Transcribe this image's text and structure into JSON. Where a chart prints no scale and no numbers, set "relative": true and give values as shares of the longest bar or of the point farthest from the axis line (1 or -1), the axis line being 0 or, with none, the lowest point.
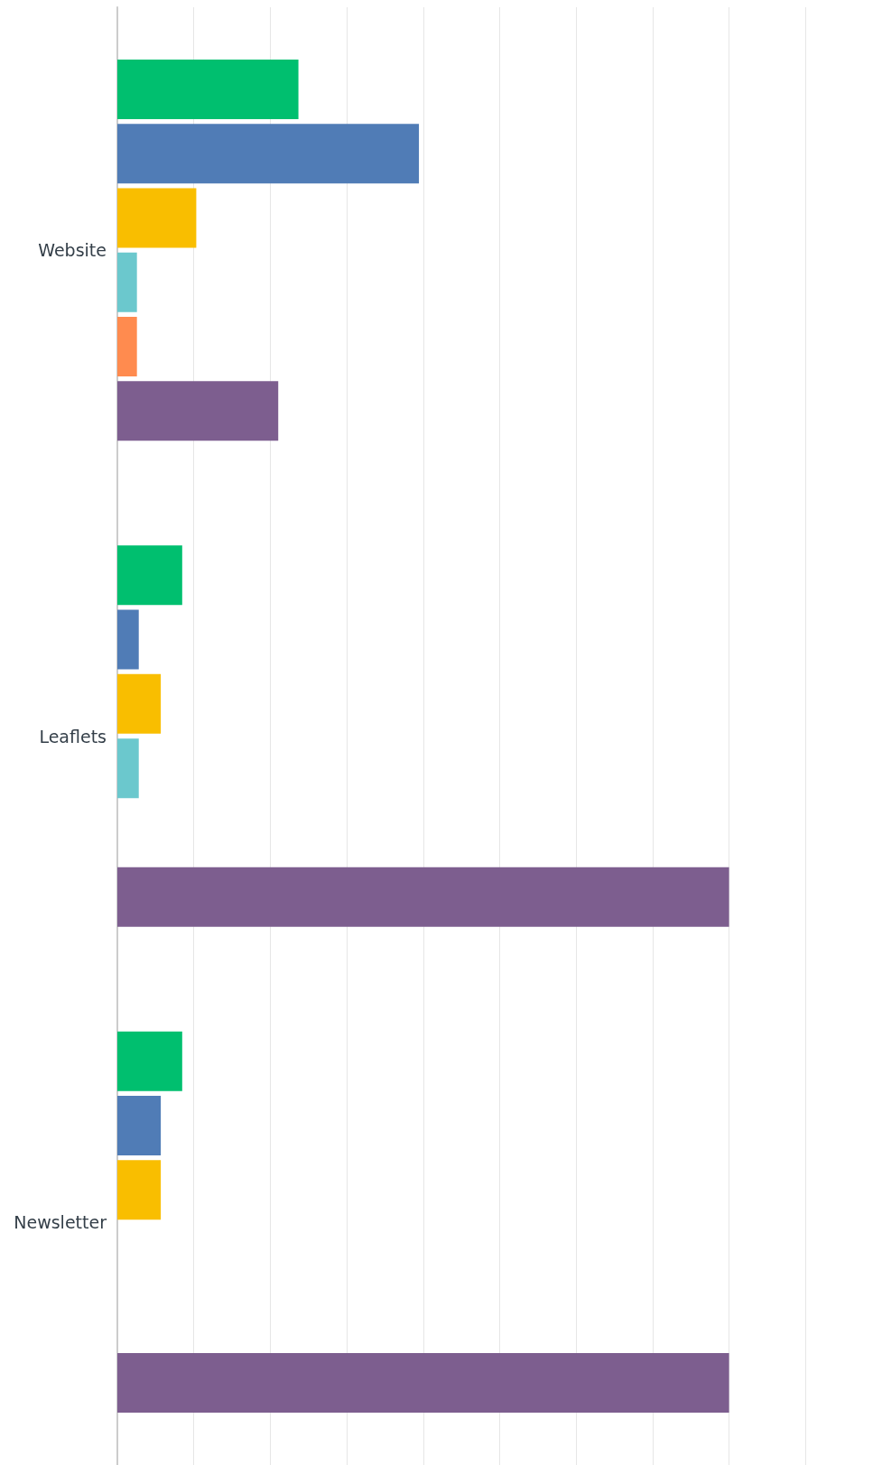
{
  "chart_data": {
    "type": "bar",
    "orientation": "horizontal",
    "relative": true,
    "grid": "x",
    "categories": [
      "Website",
      "Leaflets",
      "Newsletter"
    ],
    "series": [
      {
        "color": "#00bf6f",
        "values": [
          0.296,
          0.106,
          0.106
        ]
      },
      {
        "color": "#507cb6",
        "values": [
          0.493,
          0.035,
          0.071
        ]
      },
      {
        "color": "#f9be00",
        "values": [
          0.129,
          0.071,
          0.071
        ]
      },
      {
        "color": "#6bc8cd",
        "values": [
          0.032,
          0.035,
          null
        ]
      },
      {
        "color": "#ff8b4f",
        "values": [
          0.032,
          null,
          null
        ]
      },
      {
        "color": "#7d5e8f",
        "values": [
          0.263,
          1,
          1
        ]
      }
    ]
  }
}
